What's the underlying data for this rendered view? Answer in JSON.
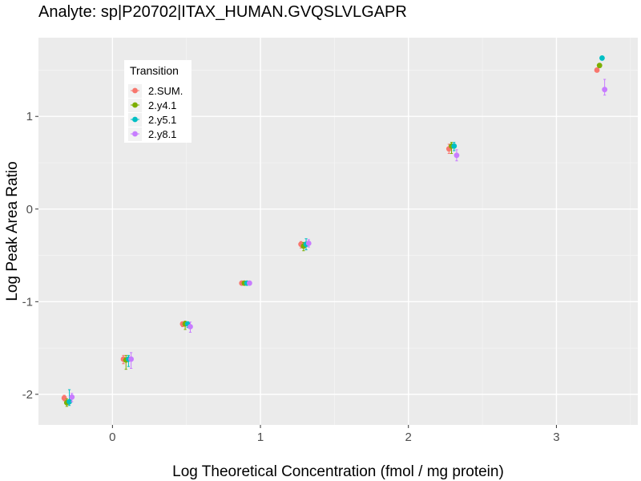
{
  "chart_data": {
    "type": "scatter",
    "title": "Analyte: sp|P20702|ITAX_HUMAN.GVQSLVLGAPR",
    "xlabel": "Log Theoretical Concentration (fmol / mg protein)",
    "ylabel": "Log Peak Area Ratio",
    "xlim": [
      -0.5,
      3.55
    ],
    "ylim": [
      -2.33,
      1.85
    ],
    "x_ticks": [
      0,
      1,
      2,
      3
    ],
    "y_ticks": [
      -2,
      -1,
      0,
      1
    ],
    "x_tick_labels": [
      "0",
      "1",
      "2",
      "3"
    ],
    "y_tick_labels": [
      "-2",
      "-1",
      "0",
      "1"
    ],
    "grid": true,
    "legend": {
      "title": "Transition",
      "position": "top-left"
    },
    "series": [
      {
        "name": "2.SUM.",
        "color": "#F8766D",
        "points": [
          {
            "x": -0.3,
            "y": -2.04,
            "ylo": -2.07,
            "yhi": -2.01
          },
          {
            "x": 0.1,
            "y": -1.62,
            "ylo": -1.67,
            "yhi": -1.58
          },
          {
            "x": 0.5,
            "y": -1.24,
            "ylo": -1.27,
            "yhi": -1.22
          },
          {
            "x": 0.9,
            "y": -0.8,
            "ylo": -0.81,
            "yhi": -0.79
          },
          {
            "x": 1.3,
            "y": -0.38,
            "ylo": -0.42,
            "yhi": -0.35
          },
          {
            "x": 2.3,
            "y": 0.65,
            "ylo": 0.6,
            "yhi": 0.7
          },
          {
            "x": 3.3,
            "y": 1.5,
            "ylo": 1.49,
            "yhi": 1.51
          }
        ]
      },
      {
        "name": "2.y4.1",
        "color": "#7CAE00",
        "points": [
          {
            "x": -0.3,
            "y": -2.09,
            "ylo": -2.13,
            "yhi": -2.05
          },
          {
            "x": 0.1,
            "y": -1.63,
            "ylo": -1.73,
            "yhi": -1.58
          },
          {
            "x": 0.5,
            "y": -1.24,
            "ylo": -1.3,
            "yhi": -1.21
          },
          {
            "x": 0.9,
            "y": -0.8,
            "ylo": -0.82,
            "yhi": -0.78
          },
          {
            "x": 1.3,
            "y": -0.4,
            "ylo": -0.45,
            "yhi": -0.36
          },
          {
            "x": 2.3,
            "y": 0.68,
            "ylo": 0.6,
            "yhi": 0.72
          },
          {
            "x": 3.3,
            "y": 1.55,
            "ylo": 1.53,
            "yhi": 1.57
          }
        ]
      },
      {
        "name": "2.y5.1",
        "color": "#00BFC4",
        "points": [
          {
            "x": -0.3,
            "y": -2.08,
            "ylo": -2.12,
            "yhi": -1.95
          },
          {
            "x": 0.1,
            "y": -1.62,
            "ylo": -1.7,
            "yhi": -1.58
          },
          {
            "x": 0.5,
            "y": -1.24,
            "ylo": -1.28,
            "yhi": -1.22
          },
          {
            "x": 0.9,
            "y": -0.8,
            "ylo": -0.81,
            "yhi": -0.79
          },
          {
            "x": 1.3,
            "y": -0.38,
            "ylo": -0.44,
            "yhi": -0.32
          },
          {
            "x": 2.3,
            "y": 0.68,
            "ylo": 0.63,
            "yhi": 0.72
          },
          {
            "x": 3.3,
            "y": 1.63,
            "ylo": 1.62,
            "yhi": 1.64
          }
        ]
      },
      {
        "name": "2.y8.1",
        "color": "#C77CFF",
        "points": [
          {
            "x": -0.3,
            "y": -2.03,
            "ylo": -2.08,
            "yhi": -1.99
          },
          {
            "x": 0.1,
            "y": -1.62,
            "ylo": -1.72,
            "yhi": -1.55
          },
          {
            "x": 0.5,
            "y": -1.27,
            "ylo": -1.33,
            "yhi": -1.22
          },
          {
            "x": 0.9,
            "y": -0.8,
            "ylo": -0.82,
            "yhi": -0.78
          },
          {
            "x": 1.3,
            "y": -0.37,
            "ylo": -0.41,
            "yhi": -0.33
          },
          {
            "x": 2.3,
            "y": 0.58,
            "ylo": 0.52,
            "yhi": 0.64
          },
          {
            "x": 3.3,
            "y": 1.29,
            "ylo": 1.23,
            "yhi": 1.4
          }
        ]
      }
    ]
  }
}
